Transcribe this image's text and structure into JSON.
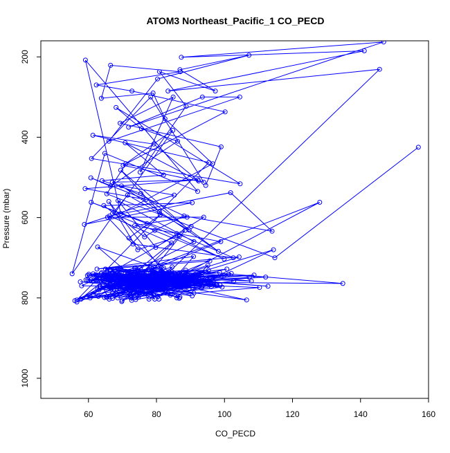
{
  "chart_data": {
    "type": "scatter",
    "title": "ATOM3 Northeast_Pacific_1 CO_PECD",
    "xlabel": "CO_PECD",
    "ylabel": "Pressure (mbar)",
    "xlim": [
      46,
      160
    ],
    "ylim": [
      1050,
      160
    ],
    "y_reversed": true,
    "x_ticks": [
      60,
      80,
      100,
      120,
      140,
      160
    ],
    "y_ticks": [
      200,
      400,
      600,
      800,
      1000
    ],
    "grid": false,
    "legend": "none",
    "series": [
      {
        "points_connected": true,
        "color": "#0000ff",
        "x": [
          157.0,
          114.8,
          90.2,
          65.4,
          71.0,
          100.2,
          72.8,
          62.3,
          87.0,
          66.5,
          63.8,
          79.0,
          82.5,
          96.5,
          69.5,
          59.1,
          92.1,
          64.8,
          55.2,
          84.8,
          70.2,
          93.9,
          78.3,
          60.9,
          104.6,
          68.1,
          75.6,
          86.2,
          66.5,
          60.7,
          76.9,
          59.0,
          92.2,
          67.0,
          89.0,
          73.6,
          98.9,
          56.0,
          75.3,
          84.4,
          66.2,
          101.8,
          114.0,
          88.1,
          79.5,
          76.5,
          64.5,
          90.5,
          58.8,
          85.2,
          69.7,
          98.2,
          75.4,
          64.0,
          82.1,
          70.8,
          92.4,
          79.2,
          61.3,
          95.4,
          80.9,
          69.5,
          89.6,
          71.5,
          67.1,
          99.9,
          77.2,
          60.8,
          86.0,
          102.6,
          73.1,
          65.6,
          93.9,
          79.8,
          68.7,
          91.0,
          56.6,
          81.1,
          71.9,
          83.6,
          65.0,
          95.7,
          76.8,
          69.4,
          86.8,
          74.5,
          66.0,
          84.4,
          90.9,
          62.5,
          104.3,
          72.5,
          78.3,
          88.4,
          67.7,
          112.1,
          78.5,
          86.0,
          95.1,
          65.5,
          71.5,
          75.9,
          134.8,
          88.6,
          68.6,
          61.5,
          96.0,
          74.2,
          81.5,
          69.9,
          89.3,
          63.1,
          57.8,
          97.7,
          73.6,
          79.5,
          64.5,
          84.1,
          110.3,
          67.4,
          79.6,
          89.4,
          59.8,
          71.7,
          96.9,
          64.2,
          86.9,
          75.5,
          107.9,
          68.6,
          58.0,
          81.9,
          93.5,
          72.6,
          68.1,
          84.6,
          78.6,
          91.0,
          63.7,
          98.7,
          77.0,
          60.1,
          82.1,
          73.7,
          90.5,
          67.2,
          56.6,
          79.5,
          66.3,
          87.9,
          76.4,
          94.5,
          70.5,
          62.9,
          83.0,
          71.6,
          85.7,
          69.4,
          80.9,
          61.8,
          88.3,
          65.1,
          76.2,
          72.7,
          92.5,
          68.6,
          80.4,
          102.0,
          74.7,
          62.3,
          66.1,
          84.5,
          78.4,
          95.5,
          70.6,
          59.5,
          83.2,
          74.1,
          68.9,
          91.4,
          75.3,
          66.6,
          86.1,
          80.6,
          64.3,
          93.2,
          77.2,
          69.8,
          82.0,
          72.6,
          99.3,
          64.2,
          89.4,
          75.2,
          70.6,
          85.2,
          79.3,
          66.7,
          95.0,
          68.6,
          82.9,
          73.8,
          60.7,
          88.8,
          77.7,
          70.2,
          107.3,
          81.8,
          84.5,
          96.1,
          73.9,
          80.5,
          68.3,
          91.8,
          75.9,
          86.4,
          64.7,
          78.7,
          70.4,
          83.2,
          100.7,
          76.2,
          93.5,
          68.5,
          81.8,
          74.3,
          88.7,
          65.0,
          72.3,
          78.9,
          114.4,
          92.8,
          62.7,
          79.1,
          66.2,
          85.8,
          70.9,
          77.8,
          89.6,
          73.7,
          128.0,
          85.7,
          61.4,
          68.1,
          80.0,
          74.6,
          95.3,
          66.2,
          82.8,
          72.4,
          91.0,
          57.6,
          77.3,
          86.7,
          69.7,
          74.6,
          102.7,
          65.3,
          83.2,
          78.0,
          89.1,
          70.4,
          60.5,
          94.9,
          76.8,
          67.5,
          81.4,
          73.1,
          86.1,
          63.9,
          93.5,
          75.8,
          69.2,
          59.7,
          84.4,
          79.7,
          64.8,
          90.7,
          72.3,
          68.6,
          77.6,
          99.9,
          62.3,
          88.3,
          71.1,
          80.2,
          65.8,
          85.2,
          74.8,
          95.6,
          69.1,
          78.4,
          92.0,
          66.7,
          82.1,
          73.0,
          86.6,
          63.5,
          81.3,
          70.6,
          97.5,
          76.5,
          67.1,
          84.7,
          59.3,
          79.4,
          72.7,
          89.6,
          64.8,
          106.5,
          74.4,
          81.2,
          68.5,
          93.3,
          75.9,
          62.2,
          87.4,
          70.9,
          78.8,
          66.4,
          83.5,
          96.7,
          71.6,
          80.7,
          65.5,
          90.6,
          73.0,
          68.4,
          101.2,
          77.6,
          85.4,
          62.7,
          79.1,
          70.5,
          88.1,
          74.0,
          67.9,
          93.2,
          81.1,
          64.9,
          76.1,
          86.7,
          69.6,
          98.6,
          72.6,
          80.5,
          63.4,
          84.3,
          75.1,
          91.0,
          112.8,
          68.1,
          78.8,
          66.3,
          87.5,
          73.0,
          82.6,
          60.3,
          95.8,
          71.2,
          79.9,
          69.0,
          85.3,
          74.2,
          108.7,
          67.1,
          90.4,
          76.7,
          63.7,
          82.2,
          145.6,
          83.4,
          141.1,
          87.3,
          146.8,
          71.8,
          93.5,
          104.5,
          66.0,
          80.3,
          107.2,
          86.9,
          97.3,
          80.9,
          88.7,
          75.2,
          84.9,
          69.3,
          99.0,
          94.5
        ],
        "y": [
          425,
          700,
          622,
          541,
          466,
          337,
          285,
          270,
          237,
          221,
          303,
          290,
          354,
          466,
          590,
          208,
          535,
          440,
          740,
          383,
          470,
          512,
          300,
          453,
          516,
          326,
          379,
          410,
          522,
          501,
          555,
          528,
          506,
          512,
          599,
          620,
          660,
          807,
          725,
          663,
          596,
          538,
          634,
          596,
          632,
          648,
          570,
          563,
          617,
          544,
          521,
          684,
          540,
          508,
          494,
          414,
          509,
          417,
          395,
          463,
          586,
          482,
          631,
          544,
          590,
          703,
          615,
          562,
          640,
          700,
          666,
          599,
          599,
          674,
          558,
          660,
          805,
          593,
          651,
          735,
          728,
          708,
          773,
          790,
          646,
          680,
          560,
          760,
          697,
          728,
          698,
          781,
          737,
          632,
          731,
          748,
          767,
          800,
          719,
          798,
          736,
          760,
          764,
          731,
          747,
          791,
          752,
          766,
          733,
          806,
          760,
          780,
          803,
          768,
          726,
          803,
          745,
          793,
          774,
          760,
          736,
          748,
          755,
          777,
          767,
          771,
          798,
          749,
          758,
          727,
          770,
          771,
          748,
          740,
          766,
          723,
          776,
          759,
          739,
          768,
          757,
          741,
          725,
          774,
          795,
          738,
          810,
          742,
          729,
          758,
          772,
          736,
          757,
          796,
          761,
          740,
          772,
          726,
          760,
          746,
          777,
          775,
          744,
          806,
          740,
          773,
          797,
          739,
          798,
          745,
          803,
          757,
          725,
          768,
          749,
          798,
          775,
          734,
          763,
          741,
          778,
          745,
          771,
          722,
          758,
          776,
          769,
          809,
          737,
          799,
          773,
          747,
          768,
          787,
          757,
          771,
          735,
          778,
          760,
          800,
          767,
          725,
          755,
          749,
          729,
          779,
          749,
          762,
          735,
          772,
          804,
          741,
          777,
          749,
          760,
          741,
          799,
          738,
          766,
          747,
          728,
          775,
          770,
          767,
          744,
          740,
          754,
          739,
          799,
          772,
          680,
          765,
          673,
          792,
          772,
          756,
          740,
          803,
          760,
          739,
          562,
          751,
          740,
          789,
          762,
          736,
          731,
          746,
          780,
          744,
          788,
          760,
          768,
          739,
          758,
          787,
          758,
          798,
          749,
          771,
          742,
          765,
          800,
          754,
          743,
          778,
          735,
          769,
          760,
          737,
          771,
          789,
          752,
          744,
          765,
          766,
          743,
          759,
          793,
          738,
          770,
          744,
          755,
          768,
          747,
          773,
          756,
          738,
          767,
          753,
          777,
          768,
          742,
          757,
          772,
          749,
          758,
          775,
          756,
          746,
          768,
          749,
          801,
          741,
          755,
          769,
          750,
          776,
          757,
          805,
          745,
          763,
          748,
          737,
          763,
          742,
          770,
          746,
          778,
          733,
          745,
          760,
          748,
          803,
          733,
          774,
          752,
          760,
          741,
          765,
          753,
          778,
          739,
          759,
          746,
          768,
          742,
          771,
          751,
          746,
          762,
          801,
          743,
          737,
          758,
          748,
          772,
          752,
          739,
          756,
          771,
          744,
          749,
          766,
          737,
          762,
          774,
          745,
          758,
          752,
          758,
          742,
          767,
          754,
          743,
          772,
          762,
          749,
          758,
          748,
          231,
          285,
          185,
          201,
          163,
          375,
          300,
          300,
          410,
          255,
          196,
          232,
          285,
          237,
          323,
          487,
          300,
          365,
          424,
          520
        ]
      }
    ]
  }
}
